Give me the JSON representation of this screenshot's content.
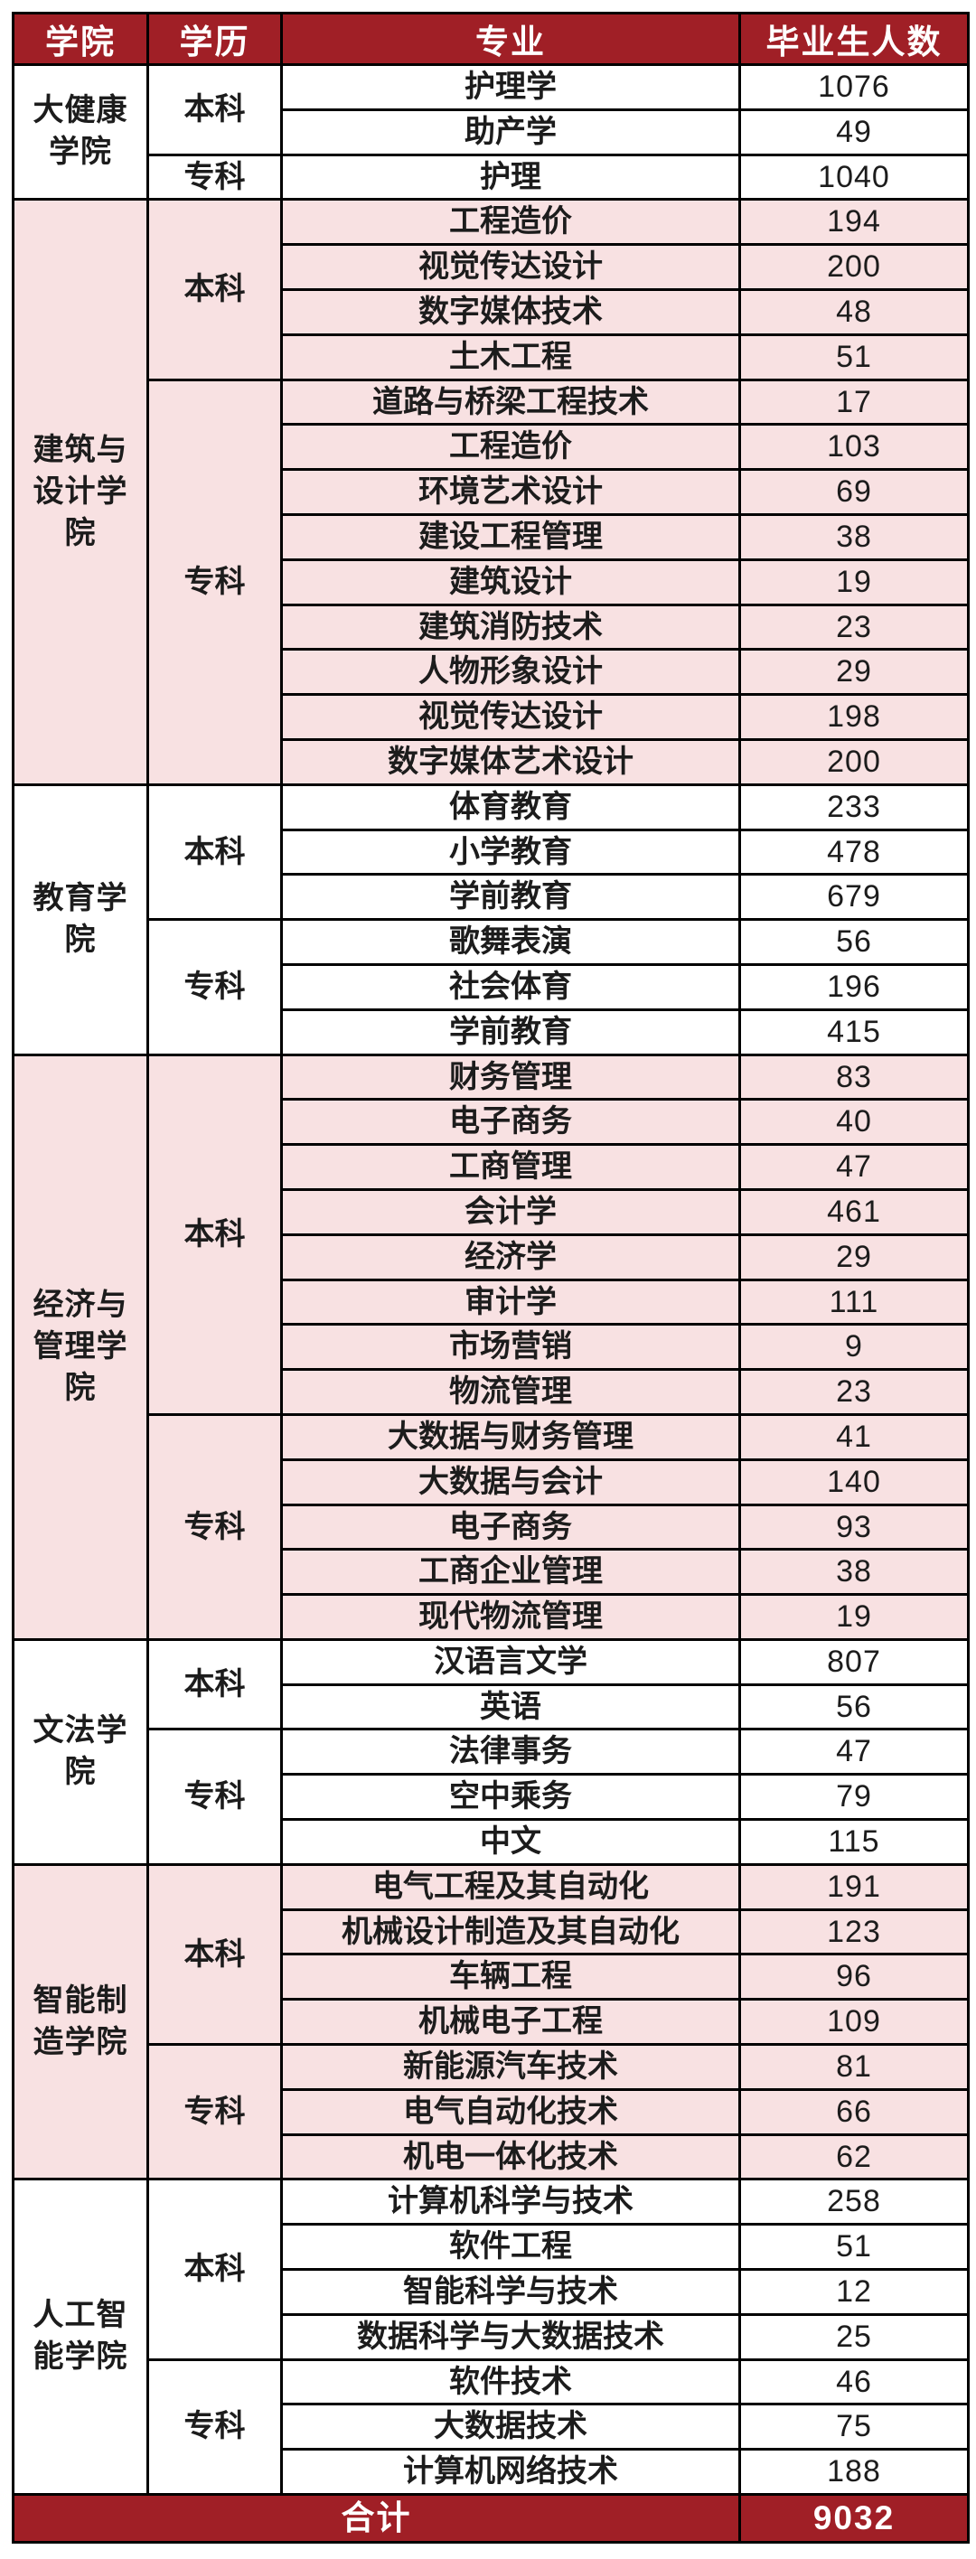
{
  "chart_data": {
    "type": "table",
    "columns": [
      "学院",
      "学历",
      "专业",
      "毕业生人数"
    ],
    "colleges": [
      {
        "name": "大健康学院",
        "tint": "white",
        "levels": [
          {
            "level": "本科",
            "majors": [
              {
                "major": "护理学",
                "count": "1076"
              },
              {
                "major": "助产学",
                "count": "49"
              }
            ]
          },
          {
            "level": "专科",
            "majors": [
              {
                "major": "护理",
                "count": "1040"
              }
            ]
          }
        ]
      },
      {
        "name": "建筑与设计学院",
        "tint": "pink",
        "levels": [
          {
            "level": "本科",
            "majors": [
              {
                "major": "工程造价",
                "count": "194"
              },
              {
                "major": "视觉传达设计",
                "count": "200"
              },
              {
                "major": "数字媒体技术",
                "count": "48"
              },
              {
                "major": "土木工程",
                "count": "51"
              }
            ]
          },
          {
            "level": "专科",
            "majors": [
              {
                "major": "道路与桥梁工程技术",
                "count": "17"
              },
              {
                "major": "工程造价",
                "count": "103"
              },
              {
                "major": "环境艺术设计",
                "count": "69"
              },
              {
                "major": "建设工程管理",
                "count": "38"
              },
              {
                "major": "建筑设计",
                "count": "19"
              },
              {
                "major": "建筑消防技术",
                "count": "23"
              },
              {
                "major": "人物形象设计",
                "count": "29"
              },
              {
                "major": "视觉传达设计",
                "count": "198"
              },
              {
                "major": "数字媒体艺术设计",
                "count": "200"
              }
            ]
          }
        ]
      },
      {
        "name": "教育学院",
        "tint": "white",
        "levels": [
          {
            "level": "本科",
            "majors": [
              {
                "major": "体育教育",
                "count": "233"
              },
              {
                "major": "小学教育",
                "count": "478"
              },
              {
                "major": "学前教育",
                "count": "679"
              }
            ]
          },
          {
            "level": "专科",
            "majors": [
              {
                "major": "歌舞表演",
                "count": "56"
              },
              {
                "major": "社会体育",
                "count": "196"
              },
              {
                "major": "学前教育",
                "count": "415"
              }
            ]
          }
        ]
      },
      {
        "name": "经济与管理学院",
        "tint": "pink",
        "levels": [
          {
            "level": "本科",
            "majors": [
              {
                "major": "财务管理",
                "count": "83"
              },
              {
                "major": "电子商务",
                "count": "40"
              },
              {
                "major": "工商管理",
                "count": "47"
              },
              {
                "major": "会计学",
                "count": "461"
              },
              {
                "major": "经济学",
                "count": "29"
              },
              {
                "major": "审计学",
                "count": "111"
              },
              {
                "major": "市场营销",
                "count": "9"
              },
              {
                "major": "物流管理",
                "count": "23"
              }
            ]
          },
          {
            "level": "专科",
            "majors": [
              {
                "major": "大数据与财务管理",
                "count": "41"
              },
              {
                "major": "大数据与会计",
                "count": "140"
              },
              {
                "major": "电子商务",
                "count": "93"
              },
              {
                "major": "工商企业管理",
                "count": "38"
              },
              {
                "major": "现代物流管理",
                "count": "19"
              }
            ]
          }
        ]
      },
      {
        "name": "文法学院",
        "tint": "white",
        "levels": [
          {
            "level": "本科",
            "majors": [
              {
                "major": "汉语言文学",
                "count": "807"
              },
              {
                "major": "英语",
                "count": "56"
              }
            ]
          },
          {
            "level": "专科",
            "majors": [
              {
                "major": "法律事务",
                "count": "47"
              },
              {
                "major": "空中乘务",
                "count": "79"
              },
              {
                "major": "中文",
                "count": "115"
              }
            ]
          }
        ]
      },
      {
        "name": "智能制造学院",
        "tint": "pink",
        "levels": [
          {
            "level": "本科",
            "majors": [
              {
                "major": "电气工程及其自动化",
                "count": "191"
              },
              {
                "major": "机械设计制造及其自动化",
                "count": "123"
              },
              {
                "major": "车辆工程",
                "count": "96"
              },
              {
                "major": "机械电子工程",
                "count": "109"
              }
            ]
          },
          {
            "level": "专科",
            "majors": [
              {
                "major": "新能源汽车技术",
                "count": "81"
              },
              {
                "major": "电气自动化技术",
                "count": "66"
              },
              {
                "major": "机电一体化技术",
                "count": "62"
              }
            ]
          }
        ]
      },
      {
        "name": "人工智能学院",
        "tint": "white",
        "levels": [
          {
            "level": "本科",
            "majors": [
              {
                "major": "计算机科学与技术",
                "count": "258"
              },
              {
                "major": "软件工程",
                "count": "51"
              },
              {
                "major": "智能科学与技术",
                "count": "12"
              },
              {
                "major": "数据科学与大数据技术",
                "count": "25"
              }
            ]
          },
          {
            "level": "专科",
            "majors": [
              {
                "major": "软件技术",
                "count": "46"
              },
              {
                "major": "大数据技术",
                "count": "75"
              },
              {
                "major": "计算机网络技术",
                "count": "188"
              }
            ]
          }
        ]
      }
    ],
    "footer": {
      "label": "合计",
      "total": "9032"
    },
    "colors": {
      "header_bg": "#A01F26",
      "header_text": "#FFFFFF",
      "pink_row_bg": "#F8E1E2",
      "white_row_bg": "#FFFFFF",
      "border": "#000000",
      "body_text": "#1C1C1C",
      "footer_bg": "#A01F26",
      "footer_text": "#FFFFFF"
    }
  }
}
